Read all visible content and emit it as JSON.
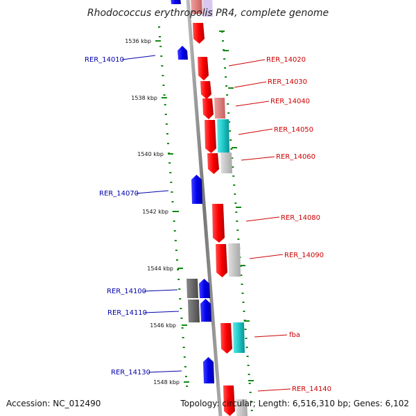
{
  "header": {
    "title": "Rhodococcus erythropolis PR4, complete genome"
  },
  "footer": {
    "accession": "Accession: NC_012490",
    "topology": "Topology: circular; Length: 6,516,310 bp; Genes: 6,102"
  },
  "scale_labels": [
    "1536 kbp",
    "1538 kbp",
    "1540 kbp",
    "1542 kbp",
    "1544 kbp",
    "1546 kbp",
    "1548 kbp"
  ],
  "colors": {
    "forward": "#ff0000",
    "forward_faded": "#e07878",
    "reverse": "#0000ee",
    "cyan": "#1ec8c8",
    "gray": "#c0c0c0",
    "dark_gray": "#666666",
    "axis": "#888888",
    "tick": "#118811",
    "label_forward": "#cc0000",
    "label_reverse": "#0000aa"
  },
  "genes": [
    {
      "label": "RER_14010",
      "strand": "reverse"
    },
    {
      "label": "RER_14020",
      "strand": "forward"
    },
    {
      "label": "RER_14030",
      "strand": "forward"
    },
    {
      "label": "RER_14040",
      "strand": "forward"
    },
    {
      "label": "RER_14050",
      "strand": "forward"
    },
    {
      "label": "RER_14060",
      "strand": "forward"
    },
    {
      "label": "RER_14070",
      "strand": "reverse"
    },
    {
      "label": "RER_14080",
      "strand": "forward"
    },
    {
      "label": "RER_14090",
      "strand": "forward"
    },
    {
      "label": "RER_14100",
      "strand": "reverse"
    },
    {
      "label": "RER_14110",
      "strand": "reverse"
    },
    {
      "label": "fba",
      "strand": "forward"
    },
    {
      "label": "RER_14130",
      "strand": "reverse"
    },
    {
      "label": "RER_14140",
      "strand": "forward"
    }
  ]
}
